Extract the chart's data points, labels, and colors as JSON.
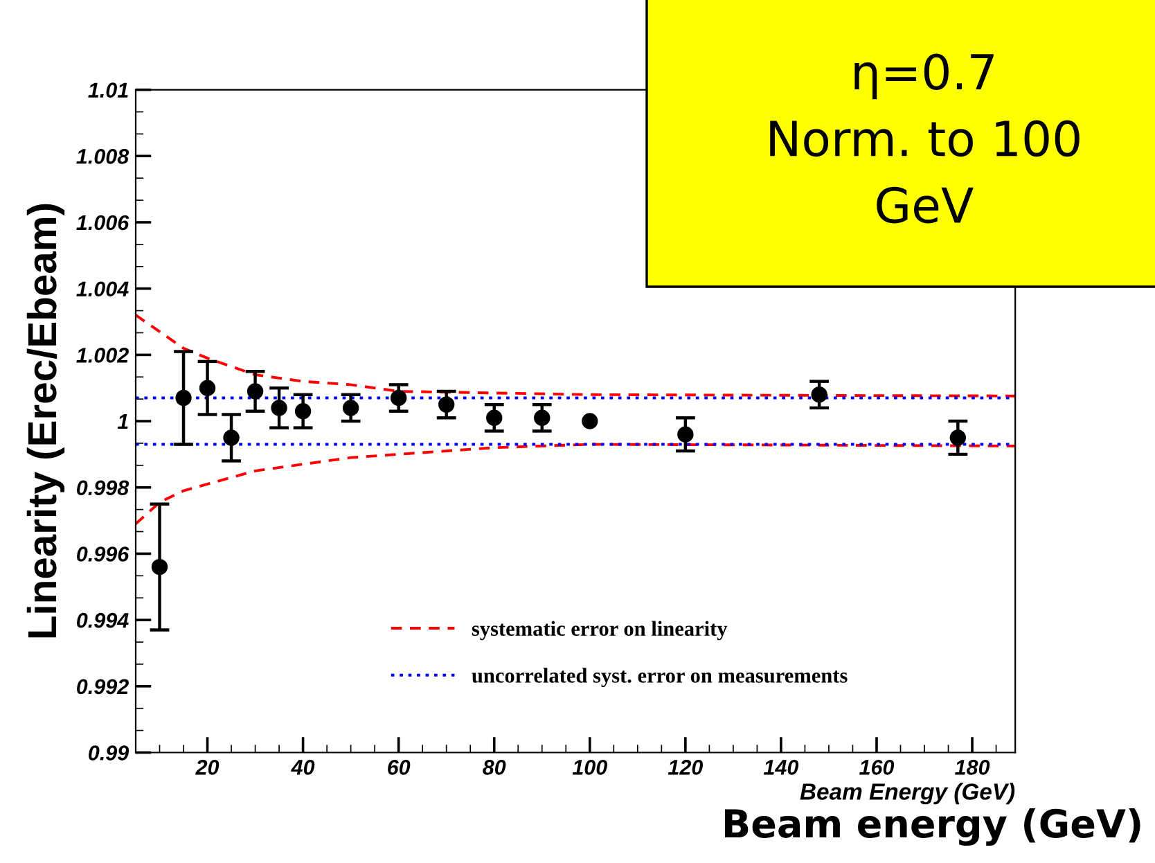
{
  "chart_data": {
    "type": "scatter",
    "xlabel": "Beam Energy (GeV)",
    "ylabel": "Linearity (Erec/Ebeam)",
    "annotations": [
      "η=0.7\nNorm. to 100\nGeV",
      "Beam energy (GeV)"
    ],
    "xlim": [
      5,
      189
    ],
    "xticks": [
      20,
      40,
      60,
      80,
      100,
      120,
      140,
      160,
      180
    ],
    "ylim": [
      0.99,
      1.01
    ],
    "yticks": [
      0.99,
      0.992,
      0.994,
      0.996,
      0.998,
      1,
      1.002,
      1.004,
      1.006,
      1.008,
      1.01
    ],
    "grid": false,
    "legend": "bottom",
    "series": [
      {
        "color": "#000000",
        "marker": "circle",
        "x": [
          10,
          15,
          20,
          25,
          30,
          35,
          40,
          50,
          60,
          70,
          80,
          90,
          100,
          120,
          148,
          177
        ],
        "values": [
          0.9956,
          1.0007,
          1.001,
          0.9995,
          1.0009,
          1.0004,
          1.0003,
          1.0004,
          1.0007,
          1.0005,
          1.0001,
          1.0001,
          1.0,
          0.9996,
          1.0008,
          0.9995
        ],
        "errors": [
          0.0019,
          0.0014,
          0.0008,
          0.0007,
          0.0006,
          0.0006,
          0.0005,
          0.0004,
          0.0004,
          0.0004,
          0.0004,
          0.0004,
          null,
          0.0005,
          0.0004,
          0.0005
        ]
      },
      {
        "type": "line",
        "name": "systematic error on linearity",
        "color": "#ff0000",
        "line_style": "dashed",
        "x": [
          5,
          10,
          15,
          20,
          30,
          40,
          50,
          60,
          80,
          100,
          140,
          189
        ],
        "values": [
          1.0032,
          1.0027,
          1.0022,
          1.0019,
          1.0014,
          1.0012,
          1.0011,
          1.0009,
          1.00085,
          1.0008,
          1.00078,
          1.00076
        ]
      },
      {
        "type": "line",
        "color": "#ff0000",
        "line_style": "dashed",
        "x": [
          5,
          10,
          15,
          20,
          30,
          40,
          50,
          60,
          80,
          100,
          140,
          189
        ],
        "values": [
          0.9969,
          0.99755,
          0.9979,
          0.9981,
          0.9985,
          0.9987,
          0.9989,
          0.999,
          0.9992,
          0.9993,
          0.99928,
          0.99925
        ]
      },
      {
        "type": "line",
        "name": "uncorrelated syst. error on measurements",
        "color": "#0000ff",
        "line_style": "dotted",
        "x": [
          5,
          189
        ],
        "values": [
          1.0007,
          1.0007
        ]
      },
      {
        "type": "line",
        "color": "#0000ff",
        "line_style": "dotted",
        "x": [
          5,
          189
        ],
        "values": [
          0.9993,
          0.9993
        ]
      }
    ]
  }
}
